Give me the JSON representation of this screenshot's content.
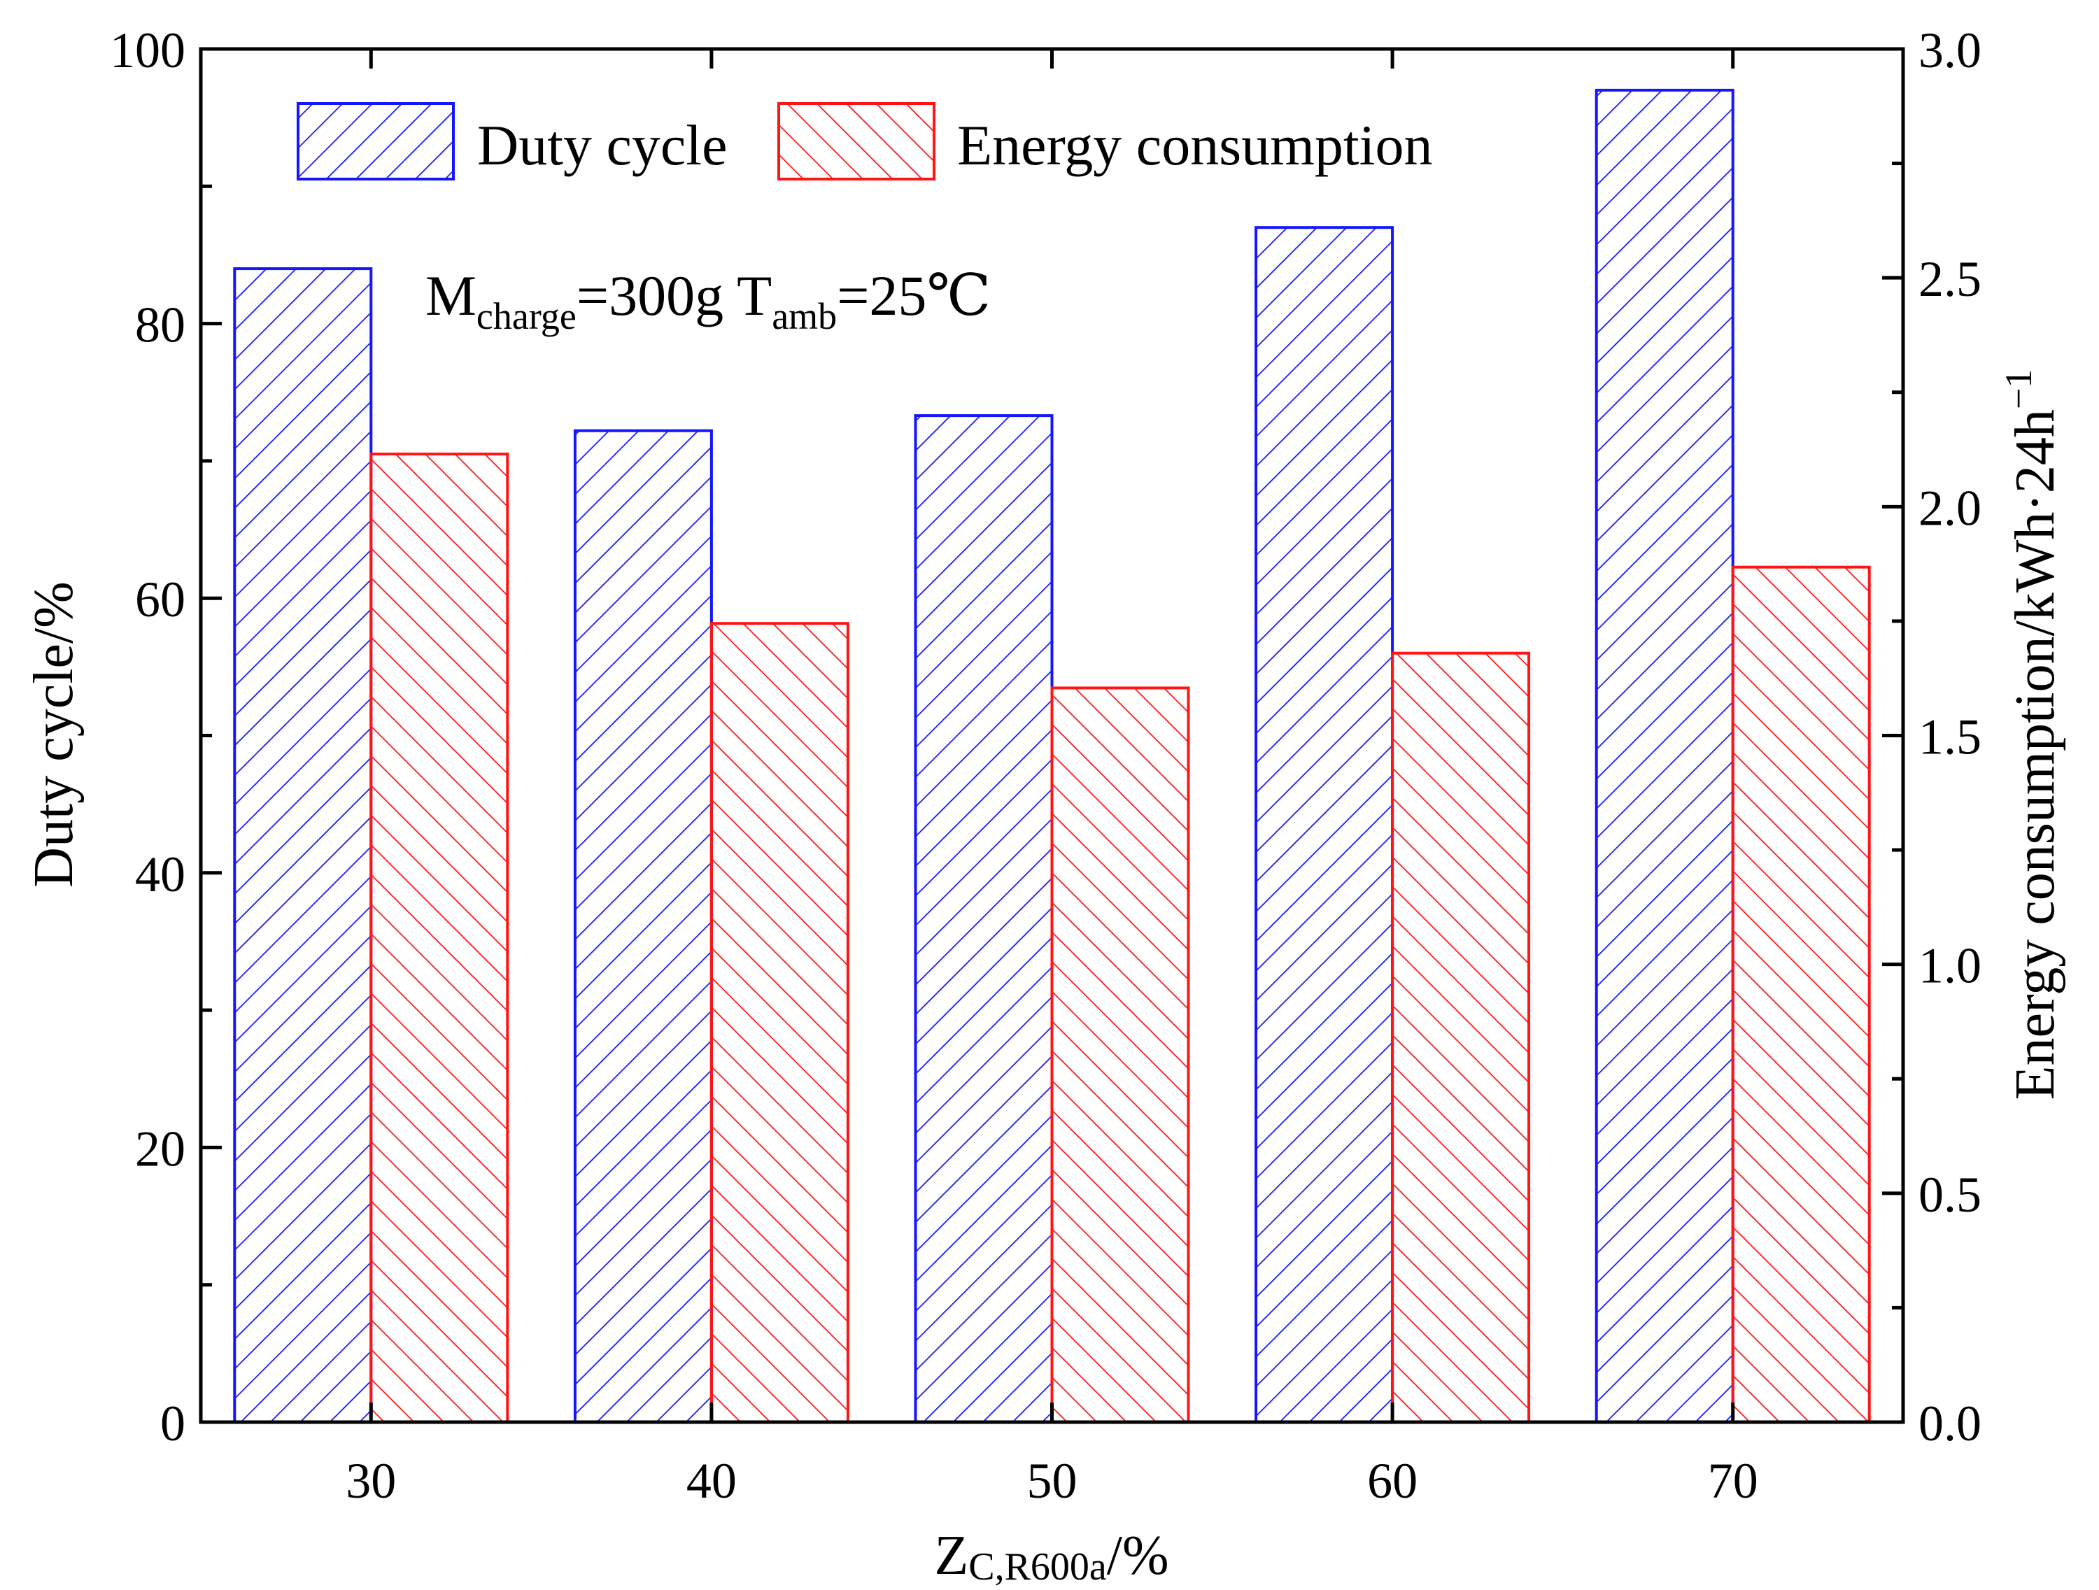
{
  "chart_data": {
    "type": "bar",
    "categories": [
      "30",
      "40",
      "50",
      "60",
      "70"
    ],
    "series": [
      {
        "name": "Duty cycle",
        "axis": "left",
        "color": "#1515ff",
        "hatch": "forward",
        "values": [
          84.0,
          72.2,
          73.3,
          87.0,
          97.0
        ]
      },
      {
        "name": "Energy consumption",
        "axis": "right",
        "color": "#ff1515",
        "hatch": "backward",
        "values": [
          2.115,
          1.745,
          1.604,
          1.68,
          1.868
        ]
      }
    ],
    "xlabel": {
      "main": "Z",
      "sub": "C,R600a",
      "suffix": "/%"
    },
    "ylabel_left": "Duty cycle/%",
    "ylabel_right": {
      "main": "Energy consumption/kWh·24h",
      "sup": "−1"
    },
    "ylim_left": [
      0,
      100
    ],
    "ylim_right": [
      0,
      3.0
    ],
    "yticks_left": [
      "0",
      "20",
      "40",
      "60",
      "80",
      "100"
    ],
    "yticks_right": [
      "0.0",
      "0.5",
      "1.0",
      "1.5",
      "2.0",
      "2.5",
      "3.0"
    ],
    "annotation": {
      "m": "M",
      "m_sub": "charge",
      "m_val": "=300g T",
      "t_sub": "amb",
      "t_val": "=25℃"
    },
    "legend_position": "top"
  }
}
